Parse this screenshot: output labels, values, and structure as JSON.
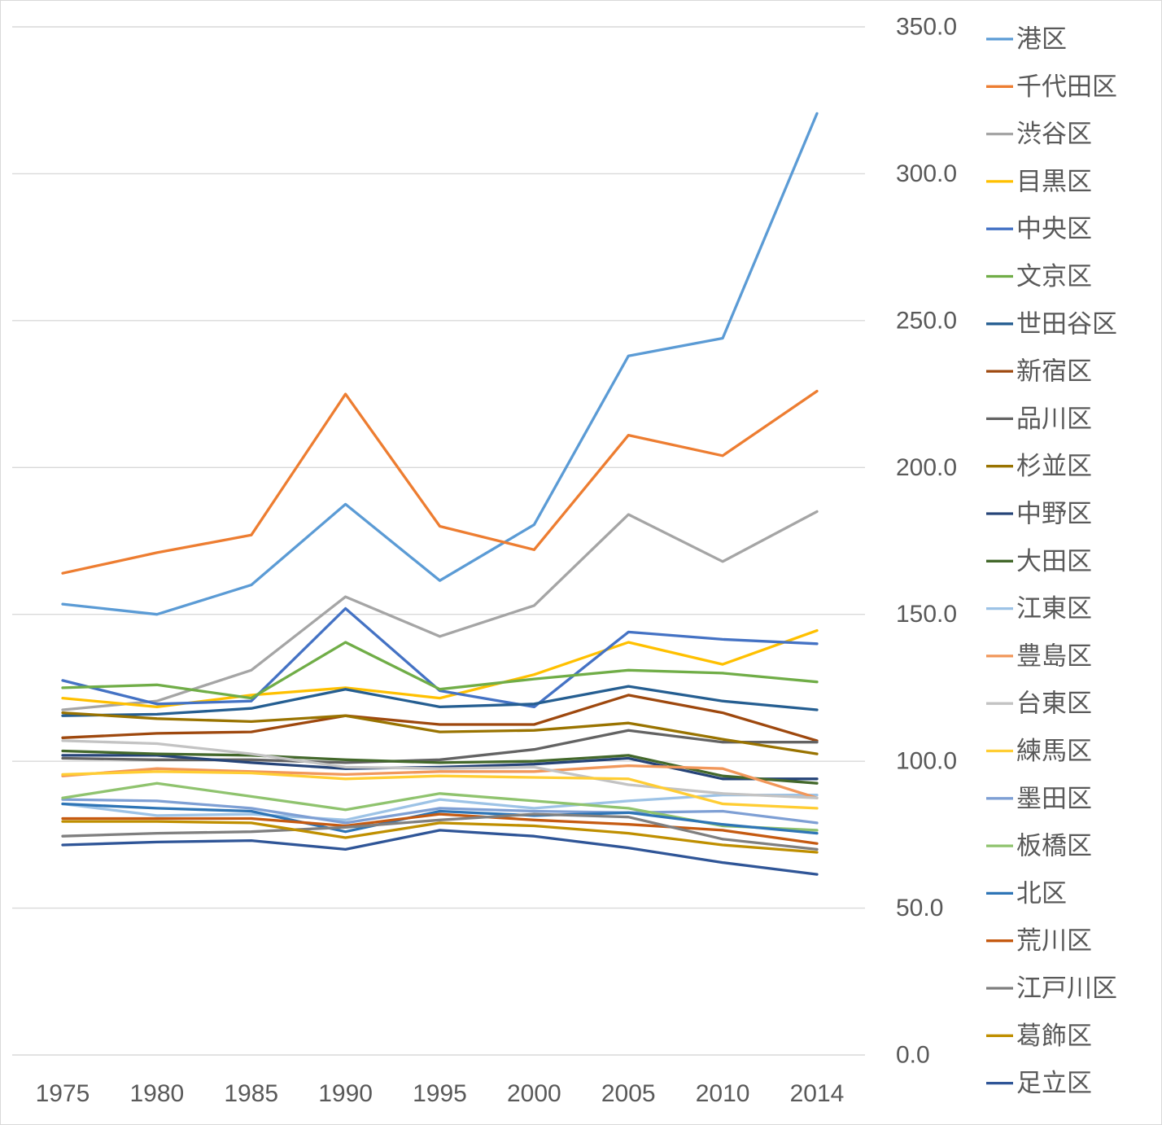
{
  "chart_data": {
    "type": "line",
    "title": "",
    "categories": [
      "1975",
      "1980",
      "1985",
      "1990",
      "1995",
      "2000",
      "2005",
      "2010",
      "2014"
    ],
    "y_axis": {
      "min": 0,
      "max": 350,
      "step": 50,
      "side": "right",
      "tick_format_decimals": 1
    },
    "grid": true,
    "legend_position": "right",
    "gridline_color": "#d9d9d9",
    "axis_text_color": "#595959",
    "background_color": "#ffffff",
    "series": [
      {
        "name": "港区",
        "color": "#5B9BD5",
        "values": [
          153.5,
          150.0,
          160.0,
          187.5,
          161.5,
          180.5,
          238.0,
          244.0,
          320.5
        ]
      },
      {
        "name": "千代田区",
        "color": "#ED7D31",
        "values": [
          164.0,
          171.0,
          177.0,
          225.0,
          180.0,
          172.0,
          211.0,
          204.0,
          226.0
        ]
      },
      {
        "name": "渋谷区",
        "color": "#A5A5A5",
        "values": [
          117.5,
          120.5,
          131.0,
          156.0,
          142.5,
          153.0,
          184.0,
          168.0,
          185.0
        ]
      },
      {
        "name": "目黒区",
        "color": "#FFC000",
        "values": [
          121.5,
          118.5,
          122.5,
          125.0,
          121.5,
          129.5,
          140.5,
          133.0,
          144.5
        ]
      },
      {
        "name": "中央区",
        "color": "#4472C4",
        "values": [
          127.5,
          119.5,
          120.5,
          152.0,
          124.0,
          118.5,
          144.0,
          141.5,
          140.0
        ]
      },
      {
        "name": "文京区",
        "color": "#70AD47",
        "values": [
          125.0,
          126.0,
          121.5,
          140.5,
          124.5,
          128.0,
          131.0,
          130.0,
          127.0
        ]
      },
      {
        "name": "世田谷区",
        "color": "#255E91",
        "values": [
          115.5,
          116.0,
          118.0,
          124.5,
          118.5,
          119.5,
          125.5,
          120.5,
          117.5
        ]
      },
      {
        "name": "新宿区",
        "color": "#9E480E",
        "values": [
          108.0,
          109.5,
          110.0,
          115.5,
          112.5,
          112.5,
          122.5,
          116.5,
          107.0
        ]
      },
      {
        "name": "品川区",
        "color": "#636363",
        "values": [
          101.0,
          100.5,
          100.5,
          99.5,
          100.5,
          104.0,
          110.5,
          106.5,
          106.5
        ]
      },
      {
        "name": "杉並区",
        "color": "#997300",
        "values": [
          116.5,
          114.5,
          113.5,
          115.5,
          110.0,
          110.5,
          113.0,
          107.5,
          102.5
        ]
      },
      {
        "name": "中野区",
        "color": "#264478",
        "values": [
          102.0,
          102.0,
          99.5,
          97.5,
          98.0,
          99.0,
          101.0,
          94.0,
          94.0
        ]
      },
      {
        "name": "大田区",
        "color": "#43682B",
        "values": [
          103.5,
          102.5,
          102.0,
          100.5,
          99.5,
          100.0,
          102.0,
          95.0,
          92.5
        ]
      },
      {
        "name": "江東区",
        "color": "#9DC3E6",
        "values": [
          85.5,
          81.5,
          82.0,
          80.0,
          87.0,
          84.0,
          86.5,
          88.5,
          88.5
        ]
      },
      {
        "name": "豊島区",
        "color": "#F1975A",
        "values": [
          95.0,
          97.5,
          96.5,
          95.5,
          96.5,
          96.5,
          98.5,
          97.5,
          87.5
        ]
      },
      {
        "name": "台東区",
        "color": "#C3C3C3",
        "values": [
          107.0,
          106.0,
          102.5,
          98.0,
          97.5,
          98.0,
          92.0,
          89.0,
          87.5
        ]
      },
      {
        "name": "練馬区",
        "color": "#FFCD33",
        "values": [
          95.5,
          96.5,
          96.0,
          94.0,
          95.0,
          94.5,
          94.0,
          85.5,
          84.0
        ]
      },
      {
        "name": "墨田区",
        "color": "#7E9FD4",
        "values": [
          87.0,
          86.5,
          84.0,
          79.0,
          84.0,
          83.0,
          82.5,
          83.0,
          79.0
        ]
      },
      {
        "name": "板橋区",
        "color": "#8FC36E",
        "values": [
          87.5,
          92.5,
          88.0,
          83.5,
          89.0,
          86.5,
          84.0,
          78.0,
          76.5
        ]
      },
      {
        "name": "北区",
        "color": "#2E75B6",
        "values": [
          85.5,
          84.0,
          83.0,
          76.0,
          83.0,
          81.5,
          82.5,
          78.5,
          75.5
        ]
      },
      {
        "name": "荒川区",
        "color": "#C55A11",
        "values": [
          80.5,
          80.5,
          80.5,
          78.0,
          82.0,
          80.0,
          78.5,
          76.5,
          72.0
        ]
      },
      {
        "name": "江戸川区",
        "color": "#7F7F7F",
        "values": [
          74.5,
          75.5,
          76.0,
          77.5,
          80.0,
          82.0,
          81.0,
          73.5,
          70.0
        ]
      },
      {
        "name": "葛飾区",
        "color": "#BF8F00",
        "values": [
          79.5,
          79.5,
          79.0,
          74.0,
          79.0,
          78.0,
          75.5,
          71.5,
          69.0
        ]
      },
      {
        "name": "足立区",
        "color": "#2F5597",
        "values": [
          71.5,
          72.5,
          73.0,
          70.0,
          76.5,
          74.5,
          70.5,
          65.5,
          61.5
        ]
      }
    ]
  }
}
